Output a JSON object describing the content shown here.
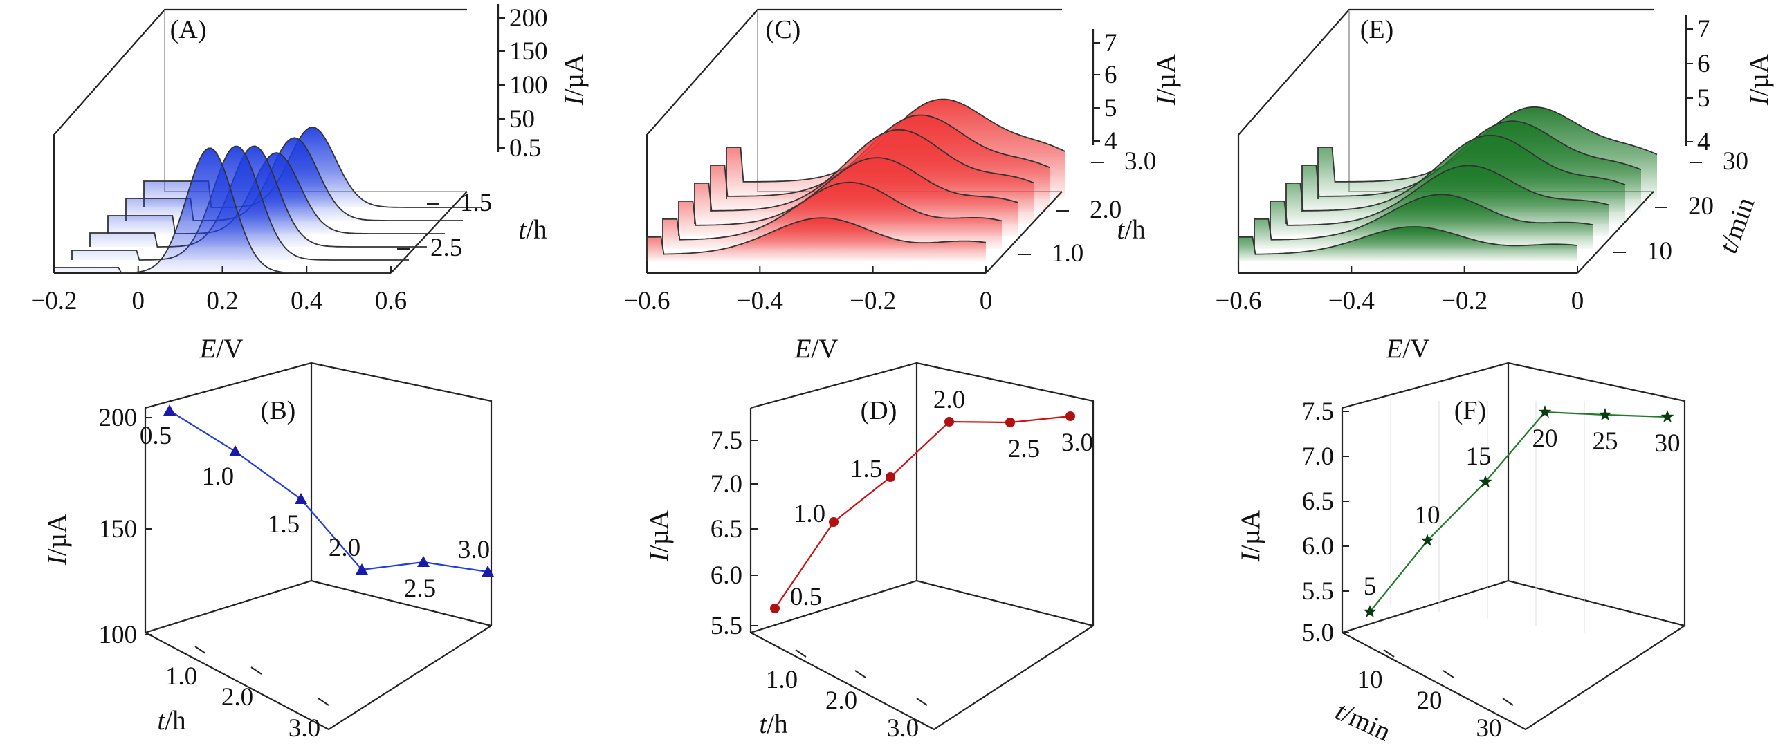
{
  "chart_data": [
    {
      "panel": "(A)",
      "type": "area",
      "xlabel_var": "E",
      "xlabel_unit": "/V",
      "ylabel_var": "I",
      "ylabel_unit": "/µA",
      "zlabel_var": "t",
      "zlabel_unit": "/h",
      "xlim": [
        -0.2,
        0.6
      ],
      "ylim": [
        0,
        200
      ],
      "x_ticks": [
        "−0.2",
        "0",
        "0.2",
        "0.4",
        "0.6"
      ],
      "y_ticks": [
        "200",
        "150",
        "100",
        "50",
        "0.5"
      ],
      "z_ticks": [
        "1.5",
        "2.5"
      ],
      "color": "#1f3de0",
      "series": [
        {
          "t": 0.5,
          "peak_E": 0.17,
          "peak_I": 201
        },
        {
          "t": 1.0,
          "peak_E": 0.19,
          "peak_I": 183
        },
        {
          "t": 1.5,
          "peak_E": 0.19,
          "peak_I": 162
        },
        {
          "t": 2.0,
          "peak_E": 0.2,
          "peak_I": 130
        },
        {
          "t": 2.5,
          "peak_E": 0.2,
          "peak_I": 133
        },
        {
          "t": 3.0,
          "peak_E": 0.2,
          "peak_I": 129
        }
      ]
    },
    {
      "panel": "(B)",
      "type": "line",
      "xlabel_var": "t",
      "xlabel_unit": "/h",
      "ylabel_var": "I",
      "ylabel_unit": "/µA",
      "y_ticks": [
        "200",
        "150",
        "100"
      ],
      "x_ticks": [
        "1.0",
        "2.0",
        "3.0"
      ],
      "ylim": [
        100,
        200
      ],
      "color": "#1f3de0",
      "marker": "triangle",
      "points": [
        {
          "x": 0.5,
          "y": 201,
          "label": "0.5"
        },
        {
          "x": 1.0,
          "y": 183,
          "label": "1.0"
        },
        {
          "x": 1.5,
          "y": 162,
          "label": "1.5"
        },
        {
          "x": 2.0,
          "y": 130,
          "label": "2.0"
        },
        {
          "x": 2.5,
          "y": 133,
          "label": "2.5"
        },
        {
          "x": 3.0,
          "y": 129,
          "label": "3.0"
        }
      ]
    },
    {
      "panel": "(C)",
      "type": "area",
      "xlabel_var": "E",
      "xlabel_unit": "/V",
      "ylabel_var": "I",
      "ylabel_unit": "/µA",
      "zlabel_var": "t",
      "zlabel_unit": "/h",
      "xlim": [
        -0.6,
        0
      ],
      "ylim": [
        4,
        7
      ],
      "x_ticks": [
        "−0.6",
        "−0.4",
        "−0.2",
        "0"
      ],
      "y_ticks": [
        "7",
        "6",
        "5",
        "4"
      ],
      "z_ticks": [
        "3.0",
        "2.0",
        "1.0"
      ],
      "color": "#f03a3a",
      "series": [
        {
          "t": 0.5,
          "peak_E": -0.29,
          "peak_I": 5.65
        },
        {
          "t": 1.0,
          "peak_E": -0.27,
          "peak_I": 6.6
        },
        {
          "t": 1.5,
          "peak_E": -0.25,
          "peak_I": 7.05
        },
        {
          "t": 2.0,
          "peak_E": -0.24,
          "peak_I": 7.65
        },
        {
          "t": 2.5,
          "peak_E": -0.23,
          "peak_I": 7.65
        },
        {
          "t": 3.0,
          "peak_E": -0.22,
          "peak_I": 7.7
        }
      ]
    },
    {
      "panel": "(D)",
      "type": "line",
      "xlabel_var": "t",
      "xlabel_unit": "/h",
      "ylabel_var": "I",
      "ylabel_unit": "/µA",
      "y_ticks": [
        "7.5",
        "7.0",
        "6.5",
        "6.0",
        "5.5"
      ],
      "x_ticks": [
        "1.0",
        "2.0",
        "3.0"
      ],
      "ylim": [
        5.4,
        7.8
      ],
      "color": "#d01010",
      "marker": "circle",
      "points": [
        {
          "x": 0.5,
          "y": 5.65,
          "label": "0.5"
        },
        {
          "x": 1.0,
          "y": 6.6,
          "label": "1.0"
        },
        {
          "x": 1.5,
          "y": 7.05,
          "label": "1.5"
        },
        {
          "x": 2.0,
          "y": 7.65,
          "label": "2.0"
        },
        {
          "x": 2.5,
          "y": 7.65,
          "label": "2.5"
        },
        {
          "x": 3.0,
          "y": 7.7,
          "label": "3.0"
        }
      ]
    },
    {
      "panel": "(E)",
      "type": "area",
      "xlabel_var": "E",
      "xlabel_unit": "/V",
      "ylabel_var": "I",
      "ylabel_unit": "/µA",
      "zlabel_var": "t",
      "zlabel_unit": "/min",
      "xlim": [
        -0.6,
        0
      ],
      "ylim": [
        4,
        7
      ],
      "x_ticks": [
        "−0.6",
        "−0.4",
        "−0.2",
        "0"
      ],
      "y_ticks": [
        "7",
        "6",
        "5",
        "4"
      ],
      "z_ticks": [
        "30",
        "20",
        "10"
      ],
      "color": "#1f7a2a",
      "series": [
        {
          "t": 5,
          "peak_E": -0.29,
          "peak_I": 5.25
        },
        {
          "t": 10,
          "peak_E": -0.27,
          "peak_I": 6.05
        },
        {
          "t": 15,
          "peak_E": -0.25,
          "peak_I": 6.7
        },
        {
          "t": 20,
          "peak_E": -0.24,
          "peak_I": 7.4
        },
        {
          "t": 25,
          "peak_E": -0.23,
          "peak_I": 7.38
        },
        {
          "t": 30,
          "peak_E": -0.22,
          "peak_I": 7.35
        }
      ]
    },
    {
      "panel": "(F)",
      "type": "line",
      "xlabel_var": "t",
      "xlabel_unit": "/min",
      "ylabel_var": "I",
      "ylabel_unit": "/µA",
      "y_ticks": [
        "7.5",
        "7.0",
        "6.5",
        "6.0",
        "5.5",
        "5.0"
      ],
      "x_ticks": [
        "10",
        "20",
        "30"
      ],
      "ylim": [
        4.95,
        7.55
      ],
      "color": "#1f7a2a",
      "marker": "star",
      "points": [
        {
          "x": 5,
          "y": 5.25,
          "label": "5"
        },
        {
          "x": 10,
          "y": 6.05,
          "label": "10"
        },
        {
          "x": 15,
          "y": 6.7,
          "label": "15"
        },
        {
          "x": 20,
          "y": 7.4,
          "label": "20"
        },
        {
          "x": 25,
          "y": 7.38,
          "label": "25"
        },
        {
          "x": 30,
          "y": 7.35,
          "label": "30"
        }
      ]
    }
  ]
}
